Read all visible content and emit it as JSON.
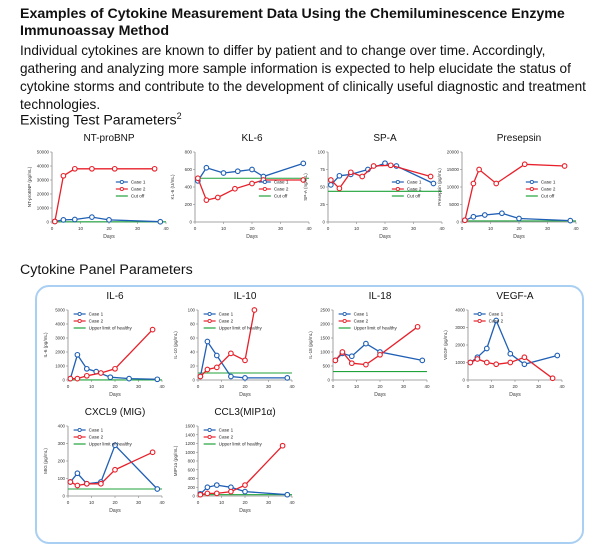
{
  "header": {
    "title": "Examples of Cytokine Measurement Data Using the Chemiluminescence Enzyme Immunoassay Method",
    "intro": "Individual cytokines are known to differ by patient and to change over time. Accordingly, gathering and analyzing more sample information is expected to help elucidate the status of cytokine storms and contribute to the development of clinically useful diagnostic and treatment technologies."
  },
  "sections": {
    "existing": "Existing Test Parameters",
    "existing_sup": "2",
    "panel": "Cytokine Panel Parameters"
  },
  "colors": {
    "case1": "#1f5fb5",
    "case2": "#e8202a",
    "cutoff": "#1fa23a",
    "panel_border": "#a9cff2"
  },
  "chart_data": [
    {
      "type": "line",
      "title": "NT-proBNP",
      "ylabel": "NT-proBNP (pg/mL)",
      "xlabel": "Days",
      "xlim": [
        0,
        40
      ],
      "xticks": [
        0,
        10,
        20,
        30,
        40
      ],
      "ylim": [
        0,
        50000
      ],
      "yticks": [
        0,
        10000,
        20000,
        30000,
        40000,
        50000
      ],
      "legend": [
        "Case 1",
        "Case 2",
        "Cut off"
      ],
      "series": [
        {
          "name": "Case 1",
          "x": [
            1,
            4,
            8,
            14,
            20,
            38
          ],
          "y": [
            400,
            1500,
            1800,
            3500,
            1500,
            200
          ]
        },
        {
          "name": "Case 2",
          "x": [
            1,
            4,
            8,
            14,
            22,
            36
          ],
          "y": [
            400,
            33000,
            38000,
            38000,
            38000,
            38000
          ]
        }
      ],
      "ref": {
        "name": "Cut off",
        "y": 125
      }
    },
    {
      "type": "line",
      "title": "KL-6",
      "ylabel": "KL-6 (U/mL)",
      "xlabel": "Days",
      "xlim": [
        0,
        40
      ],
      "xticks": [
        0,
        10,
        20,
        30,
        40
      ],
      "ylim": [
        0,
        800
      ],
      "yticks": [
        0,
        200,
        400,
        600,
        800
      ],
      "legend": [
        "Case 1",
        "Case 2",
        "Cut off"
      ],
      "series": [
        {
          "name": "Case 1",
          "x": [
            1,
            4,
            10,
            15,
            20,
            24,
            38
          ],
          "y": [
            470,
            620,
            560,
            580,
            600,
            520,
            670
          ]
        },
        {
          "name": "Case 2",
          "x": [
            1,
            4,
            8,
            14,
            20,
            24,
            38
          ],
          "y": [
            500,
            250,
            280,
            380,
            440,
            480,
            480
          ]
        }
      ],
      "ref": {
        "name": "Cut off",
        "y": 500
      }
    },
    {
      "type": "line",
      "title": "SP-A",
      "ylabel": "SP-A (ng/mL)",
      "xlabel": "Days",
      "xlim": [
        0,
        40
      ],
      "xticks": [
        0,
        10,
        20,
        30,
        40
      ],
      "ylim": [
        0,
        100
      ],
      "yticks": [
        0,
        25,
        50,
        75,
        100
      ],
      "legend": [
        "Case 1",
        "Case 2",
        "Cut off"
      ],
      "series": [
        {
          "name": "Case 1",
          "x": [
            1,
            4,
            8,
            14,
            20,
            24,
            37
          ],
          "y": [
            53,
            66,
            68,
            75,
            84,
            80,
            55
          ]
        },
        {
          "name": "Case 2",
          "x": [
            1,
            4,
            8,
            12,
            16,
            22,
            36
          ],
          "y": [
            60,
            48,
            71,
            65,
            80,
            81,
            65
          ]
        }
      ],
      "ref": {
        "name": "Cut off",
        "y": 43.8
      }
    },
    {
      "type": "line",
      "title": "Presepsin",
      "ylabel": "Presepsin (pg/mL)",
      "xlabel": "Days",
      "xlim": [
        0,
        40
      ],
      "xticks": [
        0,
        10,
        20,
        30,
        40
      ],
      "ylim": [
        0,
        20000
      ],
      "yticks": [
        0,
        5000,
        10000,
        15000,
        20000
      ],
      "legend": [
        "Case 1",
        "Case 2",
        "Cut off"
      ],
      "series": [
        {
          "name": "Case 1",
          "x": [
            1,
            4,
            8,
            14,
            20,
            38
          ],
          "y": [
            500,
            1500,
            2000,
            2500,
            1000,
            400
          ]
        },
        {
          "name": "Case 2",
          "x": [
            1,
            4,
            6,
            12,
            22,
            36
          ],
          "y": [
            500,
            11000,
            15000,
            11000,
            16500,
            16000
          ]
        }
      ],
      "ref": {
        "name": "Cut off",
        "y": 314
      }
    },
    {
      "type": "line",
      "title": "IL-6",
      "ylabel": "IL-6 (pg/mL)",
      "xlabel": "Days",
      "xlim": [
        0,
        40
      ],
      "xticks": [
        0,
        10,
        20,
        30,
        40
      ],
      "ylim": [
        0,
        5000
      ],
      "yticks": [
        0,
        1000,
        2000,
        3000,
        4000,
        5000
      ],
      "legend": [
        "Case 1",
        "Case 2",
        "Upper limit of healthy"
      ],
      "series": [
        {
          "name": "Case 1",
          "x": [
            1,
            4,
            8,
            12,
            18,
            26,
            38
          ],
          "y": [
            100,
            1800,
            800,
            600,
            200,
            100,
            50
          ]
        },
        {
          "name": "Case 2",
          "x": [
            1,
            4,
            8,
            14,
            20,
            36
          ],
          "y": [
            100,
            100,
            300,
            500,
            800,
            3600
          ]
        }
      ],
      "ref": {
        "name": "Upper limit of healthy",
        "y": 7
      }
    },
    {
      "type": "line",
      "title": "IL-10",
      "ylabel": "IL-10 (pg/mL)",
      "xlabel": "Days",
      "xlim": [
        0,
        40
      ],
      "xticks": [
        0,
        10,
        20,
        30,
        40
      ],
      "ylim": [
        0,
        100
      ],
      "yticks": [
        0,
        20,
        40,
        60,
        80,
        100
      ],
      "legend": [
        "Case 1",
        "Case 2",
        "Upper limit of healthy"
      ],
      "series": [
        {
          "name": "Case 1",
          "x": [
            1,
            4,
            8,
            14,
            20,
            38
          ],
          "y": [
            5,
            55,
            35,
            5,
            3,
            3
          ]
        },
        {
          "name": "Case 2",
          "x": [
            1,
            4,
            8,
            14,
            20,
            24
          ],
          "y": [
            5,
            15,
            18,
            38,
            28,
            100
          ]
        }
      ],
      "ref": {
        "name": "Upper limit of healthy",
        "y": 10
      }
    },
    {
      "type": "line",
      "title": "IL-18",
      "ylabel": "IL-18 (pg/mL)",
      "xlabel": "Days",
      "xlim": [
        0,
        40
      ],
      "xticks": [
        0,
        10,
        20,
        30,
        40
      ],
      "ylim": [
        0,
        2500
      ],
      "yticks": [
        0,
        500,
        1000,
        1500,
        2000,
        2500
      ],
      "legend": [
        "Case 1",
        "Case 2",
        "Upper limit of healthy"
      ],
      "series": [
        {
          "name": "Case 1",
          "x": [
            1,
            4,
            8,
            14,
            20,
            38
          ],
          "y": [
            700,
            950,
            850,
            1300,
            1000,
            700
          ]
        },
        {
          "name": "Case 2",
          "x": [
            1,
            4,
            8,
            14,
            20,
            36
          ],
          "y": [
            700,
            1000,
            600,
            550,
            900,
            1900
          ]
        }
      ],
      "ref": {
        "name": "Upper limit of healthy",
        "y": 300
      }
    },
    {
      "type": "line",
      "title": "VEGF-A",
      "ylabel": "VEGF (pg/mL)",
      "xlabel": "Days",
      "xlim": [
        0,
        40
      ],
      "xticks": [
        0,
        10,
        20,
        30,
        40
      ],
      "ylim": [
        0,
        4000
      ],
      "yticks": [
        0,
        1000,
        2000,
        3000,
        4000
      ],
      "legend": [
        "Case 1",
        "Case 2"
      ],
      "series": [
        {
          "name": "Case 1",
          "x": [
            1,
            4,
            8,
            12,
            18,
            24,
            38
          ],
          "y": [
            1000,
            1300,
            1800,
            3400,
            1500,
            900,
            1400
          ]
        },
        {
          "name": "Case 2",
          "x": [
            1,
            4,
            8,
            12,
            18,
            24,
            36
          ],
          "y": [
            1000,
            1200,
            1000,
            900,
            1000,
            1300,
            100
          ]
        }
      ]
    },
    {
      "type": "line",
      "title": "CXCL9 (MIG)",
      "ylabel": "MIG (pg/mL)",
      "xlabel": "Days",
      "xlim": [
        0,
        40
      ],
      "xticks": [
        0,
        10,
        20,
        30,
        40
      ],
      "ylim": [
        0,
        400
      ],
      "yticks": [
        0,
        100,
        200,
        300,
        400
      ],
      "legend": [
        "Case 1",
        "Case 2",
        "Upper limit of healthy"
      ],
      "series": [
        {
          "name": "Case 1",
          "x": [
            1,
            4,
            8,
            14,
            20,
            38
          ],
          "y": [
            80,
            130,
            70,
            80,
            290,
            40
          ]
        },
        {
          "name": "Case 2",
          "x": [
            1,
            4,
            8,
            14,
            20,
            36
          ],
          "y": [
            80,
            60,
            70,
            70,
            150,
            250
          ]
        }
      ],
      "ref": {
        "name": "Upper limit of healthy",
        "y": 40
      }
    },
    {
      "type": "line",
      "title": "CCL3(MIP1α)",
      "ylabel": "MIP1α (pg/mL)",
      "xlabel": "Days",
      "xlim": [
        0,
        40
      ],
      "xticks": [
        0,
        10,
        20,
        30,
        40
      ],
      "ylim": [
        0,
        1600
      ],
      "yticks": [
        0,
        200,
        400,
        600,
        800,
        1000,
        1200,
        1400,
        1600
      ],
      "legend": [
        "Case 1",
        "Case 2",
        "Upper limit of healthy"
      ],
      "series": [
        {
          "name": "Case 1",
          "x": [
            1,
            4,
            8,
            14,
            20,
            38
          ],
          "y": [
            50,
            200,
            250,
            200,
            100,
            30
          ]
        },
        {
          "name": "Case 2",
          "x": [
            1,
            4,
            8,
            14,
            20,
            36
          ],
          "y": [
            30,
            60,
            60,
            100,
            250,
            1150
          ]
        }
      ],
      "ref": {
        "name": "Upper limit of healthy",
        "y": 30
      }
    }
  ]
}
